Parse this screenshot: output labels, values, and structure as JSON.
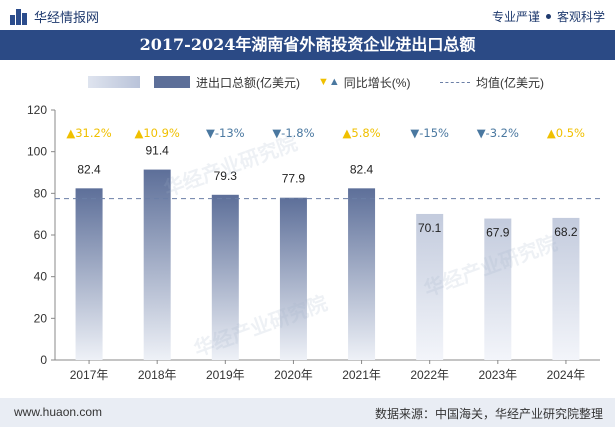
{
  "header": {
    "brand": "华经情报网",
    "slogan_1": "专业严谨",
    "slogan_2": "客观科学"
  },
  "title": "2017-2024年湖南省外商投资企业进出口总额",
  "legend": {
    "bar_label": "进出口总额(亿美元)",
    "growth_label": "同比增长(%)",
    "avg_label": "均值(亿美元)"
  },
  "watermark": "华经产业研究院",
  "footer": {
    "website": "www.huaon.com",
    "source": "数据来源：中国海关，华经产业研究院整理"
  },
  "chart_data": {
    "type": "bar",
    "categories": [
      "2017年",
      "2018年",
      "2019年",
      "2020年",
      "2021年",
      "2022年",
      "2023年",
      "2024年"
    ],
    "series": [
      {
        "name": "进出口总额(亿美元)",
        "values": [
          82.4,
          91.4,
          79.3,
          77.9,
          82.4,
          70.1,
          67.9,
          68.2
        ],
        "value_labels": [
          "82.4",
          "91.4",
          "79.3",
          "77.9",
          "82.4",
          "70.1",
          "67.9",
          "68.2"
        ]
      },
      {
        "name": "同比增长(%)",
        "values": [
          31.2,
          10.9,
          -13,
          -1.8,
          5.8,
          -15,
          -3.2,
          0.5
        ],
        "value_labels": [
          "31.2%",
          "10.9%",
          "-13%",
          "-1.8%",
          "5.8%",
          "-15%",
          "-3.2%",
          "0.5%"
        ]
      }
    ],
    "average": 77.45,
    "ylim": [
      0,
      120
    ],
    "yticks": [
      0,
      20,
      40,
      60,
      80,
      100,
      120
    ],
    "grid": false,
    "legend_position": "top",
    "colors": {
      "bar_dark": "#5d6f99",
      "bar_light": "#c3cbdd",
      "up": "#f0c000",
      "down": "#4a78a0",
      "avg_line": "#6b7fa6"
    }
  }
}
